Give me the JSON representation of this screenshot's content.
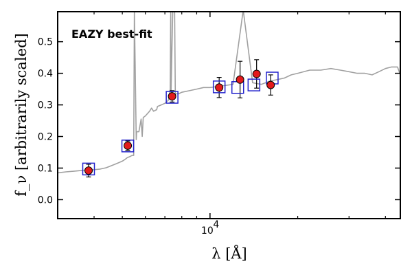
{
  "chart_data": {
    "type": "scatter",
    "annotation": "EAZY best-fit",
    "xlabel": "λ [Å]",
    "ylabel": "f_ν [arbitrarily scaled]",
    "x_scale": "log",
    "xlim": [
      3000,
      45000
    ],
    "ylim": [
      -0.06,
      0.595
    ],
    "yticks": [
      0.0,
      0.1,
      0.2,
      0.3,
      0.4,
      0.5
    ],
    "ytick_labels": [
      "0.0",
      "0.1",
      "0.2",
      "0.3",
      "0.4",
      "0.5"
    ],
    "xtick_labels": [
      {
        "value": 10000,
        "base": "10",
        "exp": "4"
      }
    ],
    "colors": {
      "observed": "#e31a1c",
      "model": "#2222cc",
      "spectrum": "#a0a0a0",
      "annotation": "#ff0000"
    },
    "series": [
      {
        "kind": "observed",
        "x": [
          3830,
          5220,
          7410,
          10750,
          12680,
          14450,
          16150
        ],
        "y": [
          0.092,
          0.171,
          0.327,
          0.355,
          0.38,
          0.398,
          0.363
        ],
        "yerr": [
          0.02,
          0.015,
          0.018,
          0.032,
          0.058,
          0.045,
          0.032
        ]
      },
      {
        "kind": "model",
        "x": [
          3830,
          5220,
          7410,
          10750,
          12450,
          14150,
          16350
        ],
        "y": [
          0.097,
          0.17,
          0.324,
          0.357,
          0.355,
          0.363,
          0.385
        ]
      },
      {
        "kind": "spectrum",
        "x": [
          3000,
          3200,
          3400,
          3600,
          3800,
          4000,
          4200,
          4400,
          4600,
          4800,
          5000,
          5100,
          5200,
          5300,
          5400,
          5470,
          5500,
          5580,
          5600,
          5700,
          5800,
          5850,
          5900,
          6000,
          6200,
          6300,
          6400,
          6560,
          6600,
          6800,
          7000,
          7200,
          7300,
          7330,
          7350,
          7450,
          7560,
          7600,
          7800,
          8000,
          8500,
          9000,
          9500,
          10000,
          11000,
          12000,
          13000,
          14000,
          15000,
          16000,
          17000,
          18000,
          19000,
          20000,
          22000,
          24000,
          26000,
          28000,
          30000,
          32000,
          34000,
          36000,
          38000,
          40000,
          42000,
          44000,
          45000
        ],
        "y": [
          0.085,
          0.088,
          0.09,
          0.092,
          0.094,
          0.095,
          0.097,
          0.101,
          0.108,
          0.115,
          0.122,
          0.127,
          0.133,
          0.136,
          0.14,
          0.14,
          0.6,
          0.19,
          0.215,
          0.215,
          0.255,
          0.2,
          0.26,
          0.265,
          0.28,
          0.29,
          0.28,
          0.285,
          0.295,
          0.3,
          0.305,
          0.315,
          0.35,
          0.6,
          0.34,
          0.6,
          0.6,
          0.335,
          0.335,
          0.34,
          0.345,
          0.35,
          0.355,
          0.355,
          0.36,
          0.365,
          0.6,
          0.37,
          0.365,
          0.375,
          0.38,
          0.385,
          0.395,
          0.4,
          0.41,
          0.41,
          0.415,
          0.41,
          0.405,
          0.4,
          0.4,
          0.395,
          0.405,
          0.415,
          0.42,
          0.42,
          0.395
        ]
      }
    ]
  }
}
